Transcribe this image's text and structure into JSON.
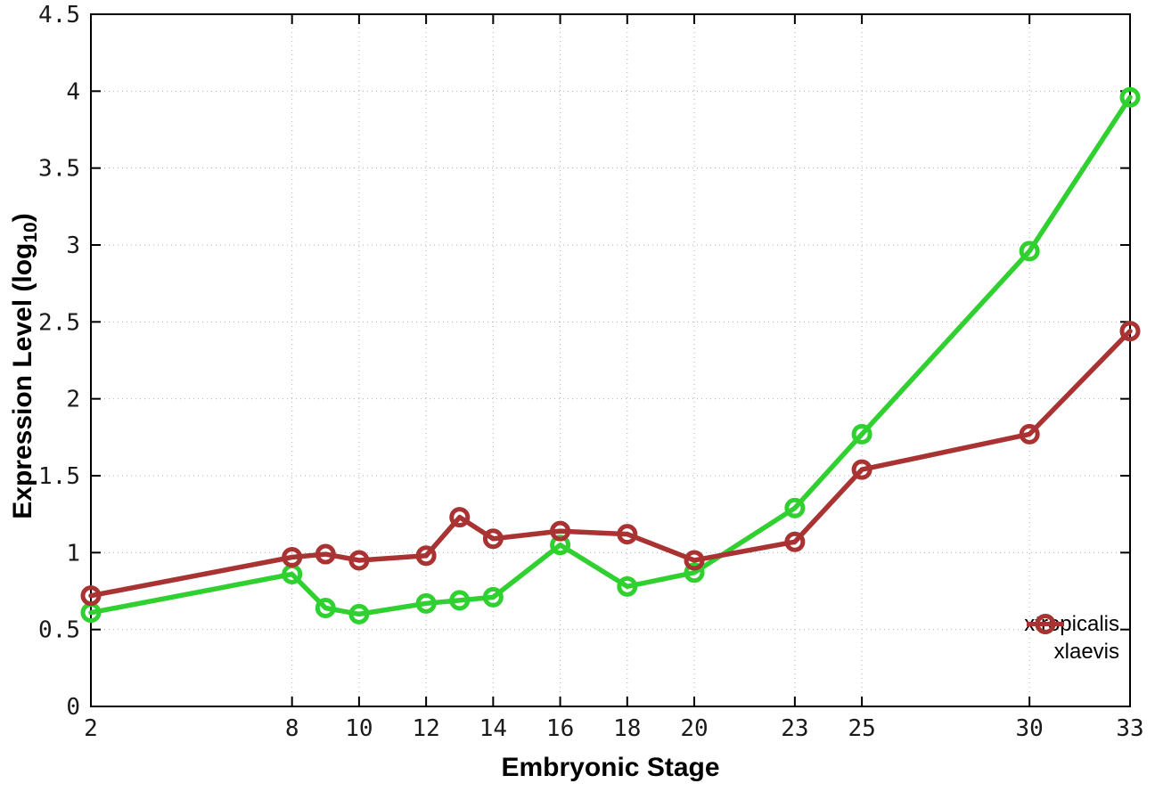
{
  "chart_data": {
    "type": "line",
    "xlabel": "Embryonic Stage",
    "ylabel": {
      "main": "Expression Level (log",
      "sub": "10",
      "close": ")"
    },
    "xlim": [
      2,
      33
    ],
    "ylim": [
      0,
      4.5
    ],
    "grid": true,
    "legend_position": "bottom-right",
    "marker": "open-circle",
    "x": [
      2,
      8,
      9,
      10,
      12,
      13,
      14,
      16,
      18,
      20,
      23,
      25,
      30,
      33
    ],
    "series": [
      {
        "name": "xtropicalis",
        "color": "#30d030",
        "values": [
          0.61,
          0.86,
          0.64,
          0.6,
          0.67,
          0.69,
          0.71,
          1.05,
          0.78,
          0.87,
          1.29,
          1.77,
          2.96,
          3.96
        ]
      },
      {
        "name": "xlaevis",
        "color": "#a93232",
        "values": [
          0.72,
          0.97,
          0.99,
          0.95,
          0.98,
          1.23,
          1.09,
          1.14,
          1.12,
          0.95,
          1.07,
          1.54,
          1.77,
          2.44
        ]
      }
    ],
    "x_ticks": [
      {
        "v": 2,
        "label": "2"
      },
      {
        "v": 8,
        "label": "8"
      },
      {
        "v": 10,
        "label": "10"
      },
      {
        "v": 12,
        "label": "12"
      },
      {
        "v": 14,
        "label": "14"
      },
      {
        "v": 16,
        "label": "16"
      },
      {
        "v": 18,
        "label": "18"
      },
      {
        "v": 20,
        "label": "20"
      },
      {
        "v": 23,
        "label": "23"
      },
      {
        "v": 25,
        "label": "25"
      },
      {
        "v": 30,
        "label": "30"
      },
      {
        "v": 33,
        "label": "33"
      }
    ],
    "y_ticks": [
      {
        "v": 0,
        "label": "0"
      },
      {
        "v": 0.5,
        "label": "0.5"
      },
      {
        "v": 1,
        "label": "1"
      },
      {
        "v": 1.5,
        "label": "1.5"
      },
      {
        "v": 2,
        "label": "2"
      },
      {
        "v": 2.5,
        "label": "2.5"
      },
      {
        "v": 3,
        "label": "3"
      },
      {
        "v": 3.5,
        "label": "3.5"
      },
      {
        "v": 4,
        "label": "4"
      },
      {
        "v": 4.5,
        "label": "4.5"
      }
    ]
  },
  "colors": {
    "background": "#ffffff",
    "grid": "#b0b0b0",
    "axis": "#000000",
    "tick_label": "#1a1a1a"
  }
}
